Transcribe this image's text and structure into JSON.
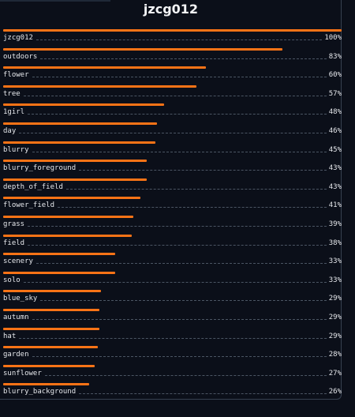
{
  "title": "jzcg012",
  "tags": [
    {
      "label": "jzcg012",
      "confidence_pct": "100%",
      "value": 100,
      "fill": 1.0
    },
    {
      "label": "outdoors",
      "confidence_pct": "83%",
      "value": 83,
      "fill": 0.825
    },
    {
      "label": "flower",
      "confidence_pct": "60%",
      "value": 60,
      "fill": 0.6
    },
    {
      "label": "tree",
      "confidence_pct": "57%",
      "value": 57,
      "fill": 0.57
    },
    {
      "label": "1girl",
      "confidence_pct": "48%",
      "value": 48,
      "fill": 0.475
    },
    {
      "label": "day",
      "confidence_pct": "46%",
      "value": 46,
      "fill": 0.455
    },
    {
      "label": "blurry",
      "confidence_pct": "45%",
      "value": 45,
      "fill": 0.45
    },
    {
      "label": "blurry_foreground",
      "confidence_pct": "43%",
      "value": 43,
      "fill": 0.425
    },
    {
      "label": "depth_of_field",
      "confidence_pct": "43%",
      "value": 43,
      "fill": 0.425
    },
    {
      "label": "flower_field",
      "confidence_pct": "41%",
      "value": 41,
      "fill": 0.405
    },
    {
      "label": "grass",
      "confidence_pct": "39%",
      "value": 39,
      "fill": 0.385
    },
    {
      "label": "field",
      "confidence_pct": "38%",
      "value": 38,
      "fill": 0.38
    },
    {
      "label": "scenery",
      "confidence_pct": "33%",
      "value": 33,
      "fill": 0.33
    },
    {
      "label": "solo",
      "confidence_pct": "33%",
      "value": 33,
      "fill": 0.33
    },
    {
      "label": "blue_sky",
      "confidence_pct": "29%",
      "value": 29,
      "fill": 0.29
    },
    {
      "label": "autumn",
      "confidence_pct": "29%",
      "value": 29,
      "fill": 0.285
    },
    {
      "label": "hat",
      "confidence_pct": "29%",
      "value": 29,
      "fill": 0.285
    },
    {
      "label": "garden",
      "confidence_pct": "28%",
      "value": 28,
      "fill": 0.28
    },
    {
      "label": "sunflower",
      "confidence_pct": "27%",
      "value": 27,
      "fill": 0.27
    },
    {
      "label": "blurry_background",
      "confidence_pct": "26%",
      "value": 26,
      "fill": 0.255
    }
  ],
  "colors": {
    "bar": "#f97316",
    "background": "#0b0f19",
    "text": "#e5e7eb",
    "leader": "#4b5563"
  }
}
